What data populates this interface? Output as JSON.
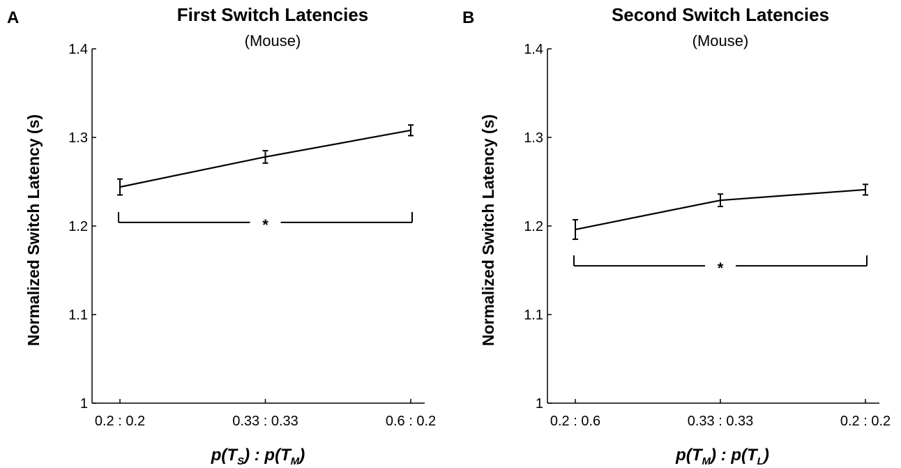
{
  "chart_data": [
    {
      "panel_letter": "A",
      "type": "line",
      "title": "First Switch Latencies",
      "subtitle": "(Mouse)",
      "ylabel": "Normalized Switch Latency (s)",
      "xlabel": {
        "p1": "p(",
        "v1": "T",
        "s1": "S",
        "mid": ") : p(",
        "v2": "T",
        "s2": "M",
        "end": ")"
      },
      "categories": [
        "0.2 : 0.2",
        "0.33 : 0.33",
        "0.6 : 0.2"
      ],
      "y_ticks": [
        "1",
        "1.1",
        "1.2",
        "1.3",
        "1.4"
      ],
      "ylim": [
        1,
        1.4
      ],
      "values": [
        1.244,
        1.278,
        1.308
      ],
      "errors": [
        0.009,
        0.007,
        0.006
      ],
      "significance": {
        "label": "*",
        "y": 1.204,
        "from": 0,
        "to": 2
      }
    },
    {
      "panel_letter": "B",
      "type": "line",
      "title": "Second Switch Latencies",
      "subtitle": "(Mouse)",
      "ylabel": "Normalized Switch Latency (s)",
      "xlabel": {
        "p1": "p(",
        "v1": "T",
        "s1": "M",
        "mid": ") : p(",
        "v2": "T",
        "s2": "L",
        "end": ")"
      },
      "categories": [
        "0.2 : 0.6",
        "0.33 : 0.33",
        "0.2 : 0.2"
      ],
      "y_ticks": [
        "1",
        "1.1",
        "1.2",
        "1.3",
        "1.4"
      ],
      "ylim": [
        1,
        1.4
      ],
      "values": [
        1.196,
        1.229,
        1.241
      ],
      "errors": [
        0.011,
        0.007,
        0.006
      ],
      "significance": {
        "label": "*",
        "y": 1.155,
        "from": 0,
        "to": 2
      }
    }
  ]
}
